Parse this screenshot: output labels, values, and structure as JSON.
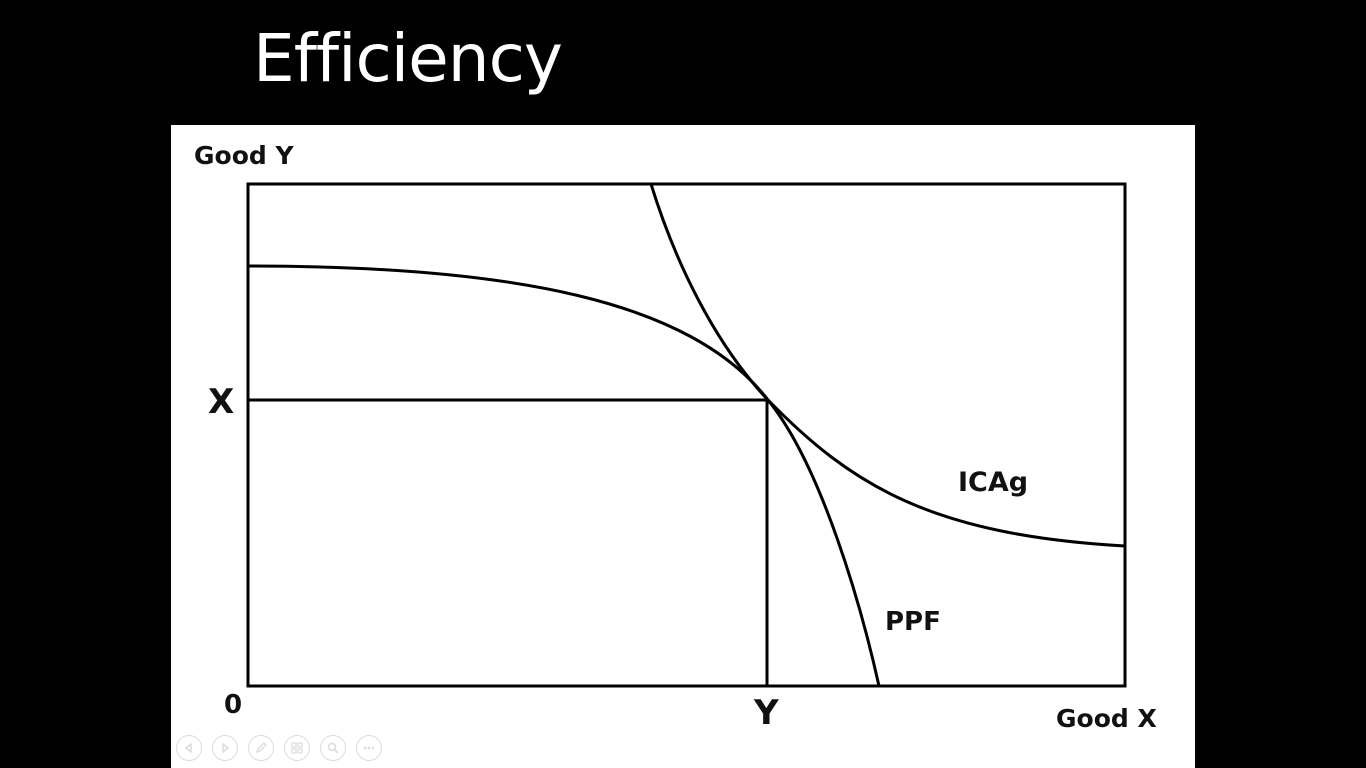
{
  "slide": {
    "title": "Efficiency",
    "background_color": "#000000",
    "title_color": "#ffffff"
  },
  "figure": {
    "y_axis_label": "Good Y",
    "x_axis_label": "Good X",
    "origin_label": "0",
    "y_point_label": "X",
    "x_point_label": "Y",
    "curve_labels": {
      "ppf": "PPF",
      "indifference": "ICAg"
    }
  },
  "toolbar": {
    "buttons": [
      {
        "icon": "previous-slide-icon"
      },
      {
        "icon": "next-slide-icon"
      },
      {
        "icon": "pen-icon"
      },
      {
        "icon": "see-all-slides-icon"
      },
      {
        "icon": "zoom-icon"
      },
      {
        "icon": "more-options-icon"
      }
    ]
  }
}
